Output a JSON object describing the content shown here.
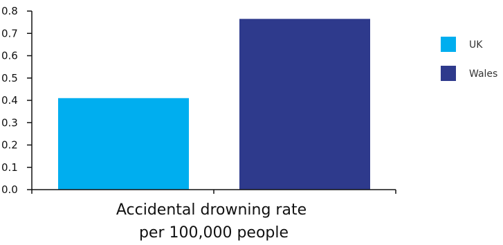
{
  "chart_data": {
    "type": "bar",
    "categories": [
      "UK",
      "Wales"
    ],
    "values": [
      0.41,
      0.765
    ],
    "ylim": [
      0,
      0.8
    ],
    "yticks": [
      "0.0",
      "0.1",
      "0.2",
      "0.3",
      "0.4",
      "0.5",
      "0.6",
      "0.7",
      "0.8"
    ],
    "xlabel_lines": [
      "Accidental drowning rate",
      "per 100,000 people"
    ],
    "ylabel": "",
    "title": "",
    "grid": false,
    "legend_position": "right",
    "legend": [
      {
        "name": "UK",
        "color": "#00AEEF"
      },
      {
        "name": "Wales",
        "color": "#2E3A8C"
      }
    ]
  }
}
